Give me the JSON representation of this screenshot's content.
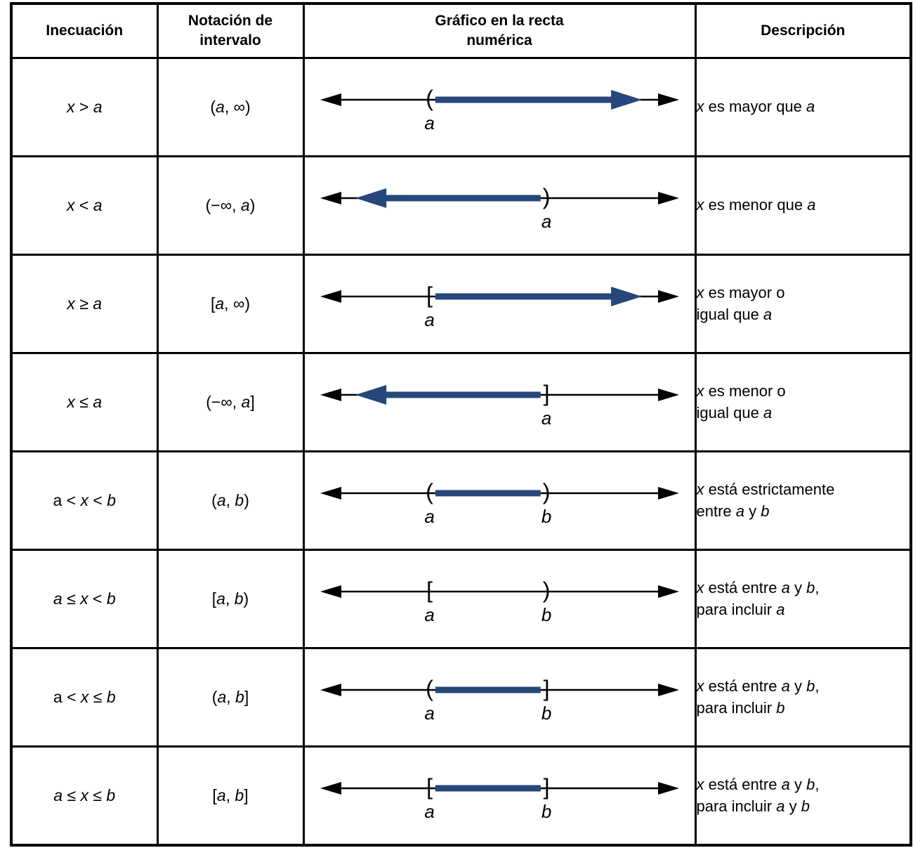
{
  "colors": {
    "highlight": "#264779",
    "line": "#000000",
    "background": "#ffffff"
  },
  "header": {
    "inequality": "Inecuación",
    "interval": "Notación de\nintervalo",
    "graph": "Gráfico en la recta\nnumérica",
    "description": "Descripción"
  },
  "rows": [
    {
      "inequality": [
        {
          "text": "x",
          "italic": true
        },
        {
          "text": " > ",
          "italic": false
        },
        {
          "text": "a",
          "italic": true
        }
      ],
      "interval": [
        {
          "text": "(",
          "italic": false
        },
        {
          "text": "a",
          "italic": true
        },
        {
          "text": ", ∞)",
          "italic": false
        }
      ],
      "graph": {
        "markers": [
          {
            "symbol": "(",
            "x": 0.32,
            "label": "a"
          }
        ],
        "highlight": {
          "from": 0.335,
          "to": 0.865,
          "arrow": "right"
        }
      },
      "description": [
        {
          "text": "x",
          "italic": true
        },
        {
          "text": " es mayor que ",
          "italic": false
        },
        {
          "text": "a",
          "italic": true
        }
      ]
    },
    {
      "inequality": [
        {
          "text": "x",
          "italic": true
        },
        {
          "text": " < ",
          "italic": false
        },
        {
          "text": "a",
          "italic": true
        }
      ],
      "interval": [
        {
          "text": "(−∞, ",
          "italic": false
        },
        {
          "text": "a",
          "italic": true
        },
        {
          "text": ")",
          "italic": false
        }
      ],
      "graph": {
        "markers": [
          {
            "symbol": ")",
            "x": 0.62,
            "label": "a"
          }
        ],
        "highlight": {
          "from": 0.13,
          "to": 0.605,
          "arrow": "left"
        }
      },
      "description": [
        {
          "text": "x",
          "italic": true
        },
        {
          "text": " es menor que ",
          "italic": false
        },
        {
          "text": "a",
          "italic": true
        }
      ]
    },
    {
      "inequality": [
        {
          "text": "x",
          "italic": true
        },
        {
          "text": " ≥ ",
          "italic": false
        },
        {
          "text": "a",
          "italic": true
        }
      ],
      "interval": [
        {
          "text": "[",
          "italic": false
        },
        {
          "text": "a",
          "italic": true
        },
        {
          "text": ", ∞)",
          "italic": false
        }
      ],
      "graph": {
        "markers": [
          {
            "symbol": "[",
            "x": 0.32,
            "label": "a"
          }
        ],
        "highlight": {
          "from": 0.335,
          "to": 0.865,
          "arrow": "right"
        }
      },
      "description": [
        {
          "text": "x",
          "italic": true
        },
        {
          "text": " es mayor o\nigual que ",
          "italic": false
        },
        {
          "text": "a",
          "italic": true
        }
      ]
    },
    {
      "inequality": [
        {
          "text": "x",
          "italic": true
        },
        {
          "text": " ≤ ",
          "italic": false
        },
        {
          "text": "a",
          "italic": true
        }
      ],
      "interval": [
        {
          "text": "(−∞, ",
          "italic": false
        },
        {
          "text": "a",
          "italic": true
        },
        {
          "text": "]",
          "italic": false
        }
      ],
      "graph": {
        "markers": [
          {
            "symbol": "]",
            "x": 0.62,
            "label": "a"
          }
        ],
        "highlight": {
          "from": 0.13,
          "to": 0.605,
          "arrow": "left"
        }
      },
      "description": [
        {
          "text": "x",
          "italic": true
        },
        {
          "text": " es menor o\nigual que ",
          "italic": false
        },
        {
          "text": "a",
          "italic": true
        }
      ]
    },
    {
      "inequality": [
        {
          "text": "a < ",
          "italic": false
        },
        {
          "text": "x",
          "italic": true
        },
        {
          "text": " < ",
          "italic": false
        },
        {
          "text": "b",
          "italic": true
        }
      ],
      "interval": [
        {
          "text": "(",
          "italic": false
        },
        {
          "text": "a",
          "italic": true
        },
        {
          "text": ", ",
          "italic": false
        },
        {
          "text": "b",
          "italic": true
        },
        {
          "text": ")",
          "italic": false
        }
      ],
      "graph": {
        "markers": [
          {
            "symbol": "(",
            "x": 0.32,
            "label": "a"
          },
          {
            "symbol": ")",
            "x": 0.62,
            "label": "b"
          }
        ],
        "highlight": {
          "from": 0.335,
          "to": 0.605,
          "arrow": "none"
        }
      },
      "description": [
        {
          "text": "x",
          "italic": true
        },
        {
          "text": " está estrictamente\nentre ",
          "italic": false
        },
        {
          "text": "a",
          "italic": true
        },
        {
          "text": " y ",
          "italic": false
        },
        {
          "text": "b",
          "italic": true
        }
      ]
    },
    {
      "inequality": [
        {
          "text": "a",
          "italic": true
        },
        {
          "text": " ≤ ",
          "italic": false
        },
        {
          "text": "x",
          "italic": true
        },
        {
          "text": " < ",
          "italic": false
        },
        {
          "text": "b",
          "italic": true
        }
      ],
      "interval": [
        {
          "text": "[",
          "italic": false
        },
        {
          "text": "a",
          "italic": true
        },
        {
          "text": ", ",
          "italic": false
        },
        {
          "text": "b",
          "italic": true
        },
        {
          "text": ")",
          "italic": false
        }
      ],
      "graph": {
        "markers": [
          {
            "symbol": "[",
            "x": 0.32,
            "label": "a"
          },
          {
            "symbol": ")",
            "x": 0.62,
            "label": "b"
          }
        ],
        "highlight": null
      },
      "description": [
        {
          "text": "x",
          "italic": true
        },
        {
          "text": " está entre ",
          "italic": false
        },
        {
          "text": "a",
          "italic": true
        },
        {
          "text": " y ",
          "italic": false
        },
        {
          "text": "b",
          "italic": true
        },
        {
          "text": ",\npara incluir ",
          "italic": false
        },
        {
          "text": "a",
          "italic": true
        }
      ]
    },
    {
      "inequality": [
        {
          "text": "a < ",
          "italic": false
        },
        {
          "text": "x",
          "italic": true
        },
        {
          "text": " ≤ ",
          "italic": false
        },
        {
          "text": "b",
          "italic": true
        }
      ],
      "interval": [
        {
          "text": "(",
          "italic": false
        },
        {
          "text": "a",
          "italic": true
        },
        {
          "text": ", ",
          "italic": false
        },
        {
          "text": "b",
          "italic": true
        },
        {
          "text": "]",
          "italic": false
        }
      ],
      "graph": {
        "markers": [
          {
            "symbol": "(",
            "x": 0.32,
            "label": "a"
          },
          {
            "symbol": "]",
            "x": 0.62,
            "label": "b"
          }
        ],
        "highlight": {
          "from": 0.335,
          "to": 0.605,
          "arrow": "none"
        }
      },
      "description": [
        {
          "text": "x",
          "italic": true
        },
        {
          "text": " está entre ",
          "italic": false
        },
        {
          "text": "a",
          "italic": true
        },
        {
          "text": " y ",
          "italic": false
        },
        {
          "text": "b",
          "italic": true
        },
        {
          "text": ",\npara incluir ",
          "italic": false
        },
        {
          "text": "b",
          "italic": true
        }
      ]
    },
    {
      "inequality": [
        {
          "text": "a",
          "italic": true
        },
        {
          "text": " ≤ ",
          "italic": false
        },
        {
          "text": "x",
          "italic": true
        },
        {
          "text": " ≤ ",
          "italic": false
        },
        {
          "text": "b",
          "italic": true
        }
      ],
      "interval": [
        {
          "text": "[",
          "italic": false
        },
        {
          "text": "a",
          "italic": true
        },
        {
          "text": ", ",
          "italic": false
        },
        {
          "text": "b",
          "italic": true
        },
        {
          "text": "]",
          "italic": false
        }
      ],
      "graph": {
        "markers": [
          {
            "symbol": "[",
            "x": 0.32,
            "label": "a"
          },
          {
            "symbol": "]",
            "x": 0.62,
            "label": "b"
          }
        ],
        "highlight": {
          "from": 0.335,
          "to": 0.605,
          "arrow": "none"
        }
      },
      "description": [
        {
          "text": "x",
          "italic": true
        },
        {
          "text": " está entre ",
          "italic": false
        },
        {
          "text": "a",
          "italic": true
        },
        {
          "text": " y ",
          "italic": false
        },
        {
          "text": "b",
          "italic": true
        },
        {
          "text": ",\npara incluir ",
          "italic": false
        },
        {
          "text": "a",
          "italic": true
        },
        {
          "text": " y ",
          "italic": false
        },
        {
          "text": "b",
          "italic": true
        }
      ]
    }
  ]
}
